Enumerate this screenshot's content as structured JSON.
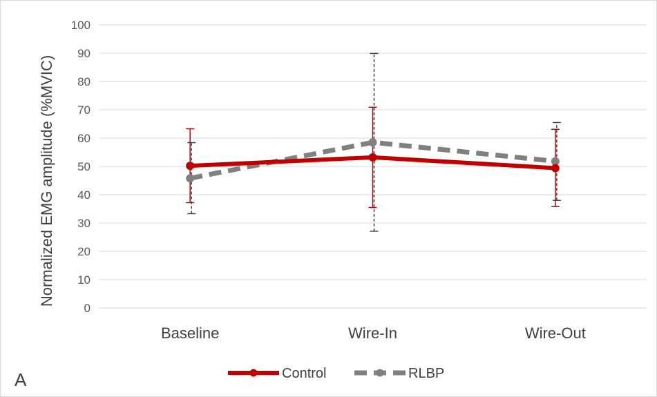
{
  "chart_data": {
    "type": "line",
    "panel_label": "A",
    "ylabel": "Normalized EMG amplitude (%MVIC)",
    "xlabel": "",
    "ylim": [
      0,
      100
    ],
    "yticks": [
      0,
      10,
      20,
      30,
      40,
      50,
      60,
      70,
      80,
      90,
      100
    ],
    "categories": [
      "Baseline",
      "Wire-In",
      "Wire-Out"
    ],
    "grid": "horizontal",
    "legend_position": "bottom",
    "series": [
      {
        "name": "Control",
        "values": [
          50.2,
          53.2,
          49.4
        ],
        "error_low": [
          37.2,
          35.5,
          35.8
        ],
        "error_high": [
          63.3,
          70.9,
          63.1
        ],
        "color": "#c00000",
        "line_style": "solid"
      },
      {
        "name": "RLBP",
        "values": [
          45.8,
          58.5,
          51.8
        ],
        "error_low": [
          33.3,
          27.1,
          38.0
        ],
        "error_high": [
          58.4,
          89.9,
          65.5
        ],
        "color": "#808080",
        "line_style": "dashed"
      }
    ]
  }
}
